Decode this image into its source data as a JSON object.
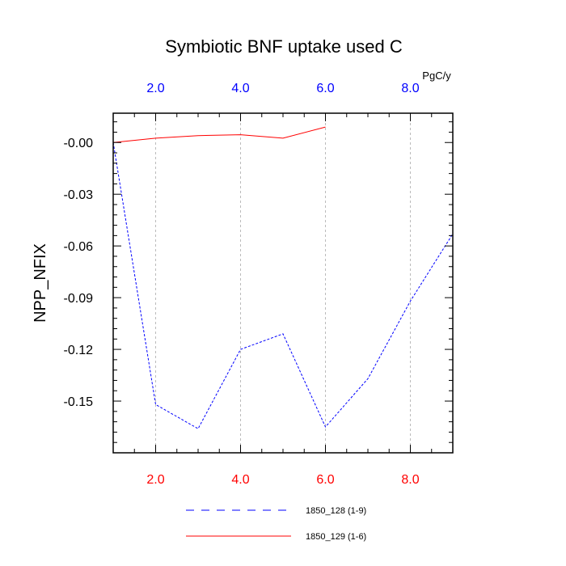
{
  "chart_data": {
    "type": "line",
    "title": "Symbiotic BNF uptake used C",
    "ylabel": "NPP_NFIX",
    "top_axis_unit": "PgC/y",
    "xlim": [
      1,
      9
    ],
    "ylim": [
      -0.18,
      0.017
    ],
    "x_ticks": [
      2,
      4,
      6,
      8
    ],
    "x_tick_labels": [
      "2.0",
      "4.0",
      "6.0",
      "8.0"
    ],
    "y_ticks": [
      0,
      -0.03,
      -0.06,
      -0.09,
      -0.12,
      -0.15
    ],
    "y_tick_labels": [
      "-0.00",
      "-0.03",
      "-0.06",
      "-0.09",
      "-0.12",
      "-0.15"
    ],
    "bottom_tick_color": "#ff0000",
    "top_tick_color": "#0000ff",
    "grid": "vertical dashed at major x ticks",
    "series": [
      {
        "name": "1850_128 (1-9)",
        "color": "#0000ff",
        "dashed": true,
        "x": [
          1,
          2,
          3,
          4,
          5,
          6,
          7,
          8,
          9
        ],
        "y": [
          0.0,
          -0.152,
          -0.166,
          -0.12,
          -0.111,
          -0.165,
          -0.137,
          -0.092,
          -0.053
        ]
      },
      {
        "name": "1850_129 (1-6)",
        "color": "#ff0000",
        "dashed": false,
        "x": [
          1,
          2,
          3,
          4,
          5,
          6
        ],
        "y": [
          0.0,
          0.0025,
          0.004,
          0.0045,
          0.0025,
          0.009
        ]
      }
    ],
    "legend": "bottom-center"
  }
}
